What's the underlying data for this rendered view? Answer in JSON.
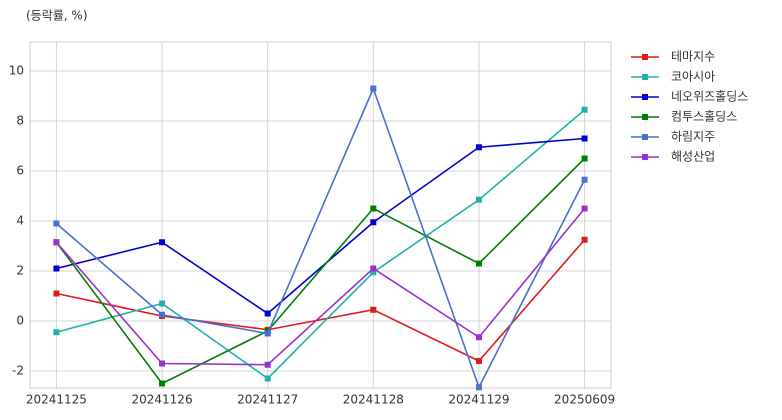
{
  "chart_data": {
    "type": "line",
    "y_label": "(등락률, %)",
    "categories": [
      "20241125",
      "20241126",
      "20241127",
      "20241128",
      "20241129",
      "20250609"
    ],
    "series": [
      {
        "name": "테마지수",
        "color": "#dd1c1c",
        "values": [
          1.1,
          0.2,
          -0.35,
          0.45,
          -1.6,
          3.25
        ]
      },
      {
        "name": "코아시아",
        "color": "#20b2aa",
        "values": [
          -0.45,
          0.7,
          -2.3,
          1.95,
          4.85,
          8.45
        ]
      },
      {
        "name": "네오위즈홀딩스",
        "color": "#0000cd",
        "values": [
          2.1,
          3.15,
          0.3,
          3.95,
          6.95,
          7.3
        ]
      },
      {
        "name": "컴투스홀딩스",
        "color": "#008000",
        "values": [
          3.15,
          -2.5,
          -0.4,
          4.5,
          2.3,
          6.5
        ]
      },
      {
        "name": "하림지주",
        "color": "#4a6fd0",
        "values": [
          3.9,
          0.25,
          -0.5,
          9.3,
          -2.65,
          5.65
        ]
      },
      {
        "name": "해성산업",
        "color": "#9932cc",
        "values": [
          3.15,
          -1.7,
          -1.75,
          2.1,
          -0.65,
          4.5
        ]
      }
    ],
    "ylim": [
      -2.68,
      11.16
    ],
    "yticks": [
      -2,
      0,
      2,
      4,
      6,
      8,
      10
    ],
    "grid": true,
    "legend": "right",
    "marker": "square"
  }
}
